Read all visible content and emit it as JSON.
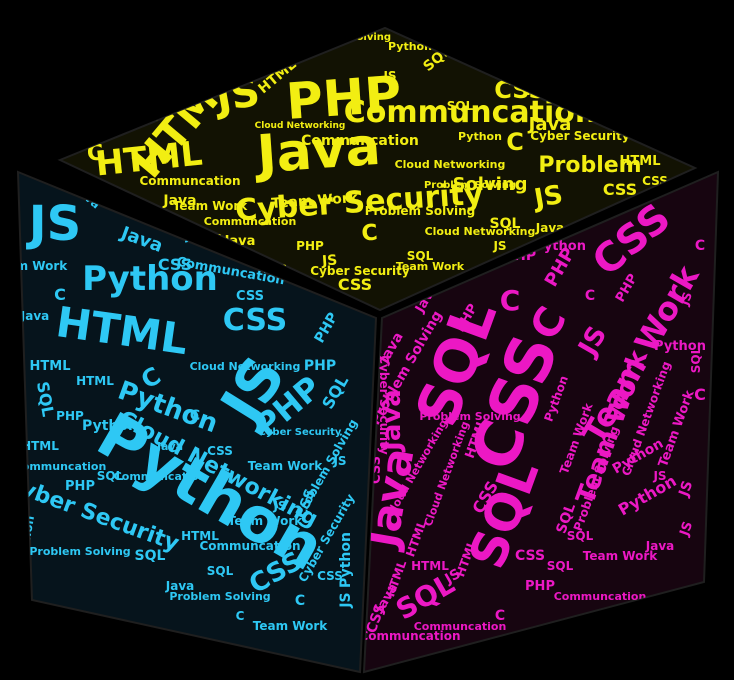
{
  "colors": {
    "background": "#000000",
    "top_face": "#121203",
    "left_face": "#06141c",
    "right_face": "#170510",
    "edge": "#1f1f1f",
    "top_words": "#f2ee12",
    "left_words": "#2ec8f4",
    "right_words": "#ec18c4"
  },
  "cube": {
    "top_face": {
      "words": [
        "PHP",
        "Java",
        "Cyber Security",
        "HTML",
        "JS",
        "HTML",
        "C",
        "Communcation",
        "Java",
        "CSS",
        "C",
        "Problem",
        "Solving",
        "Cyber Security",
        "SQL",
        "Communcation",
        "Team Work",
        "Problem Solving",
        "JS",
        "CSS",
        "Python",
        "PHP",
        "Cloud Networking",
        "HTML",
        "JS",
        "Cyber Security",
        "SQL",
        "C",
        "Problem Solving",
        "Team Work",
        "Java",
        "CSS",
        "JS",
        "HTML",
        "Python",
        "PHP",
        "CSS",
        "Cloud Networking",
        "Java",
        "SQL",
        "Communcation",
        "C",
        "Team Work",
        "Problem Solving",
        "Cyber Security",
        "Python",
        "HTML",
        "JS",
        "CSS",
        "PHP",
        "Java",
        "C",
        "SQL",
        "Communcation",
        "Team Work",
        "HTML",
        "CSS",
        "JS",
        "PHP",
        "Python",
        "Cloud Networking"
      ]
    },
    "left_face": {
      "words": [
        "Python",
        "HTML",
        "JS",
        "Python",
        "CSS",
        "PHP",
        "JS",
        "Cloud Networking",
        "Python",
        "Cyber Security",
        "CSS",
        "C",
        "Java",
        "CSS",
        "Communcation",
        "SQL",
        "C",
        "Team Work",
        "Problem Solving",
        "Java",
        "SQL",
        "PHP",
        "HTML",
        "Cyber Security",
        "Problem Solving",
        "CSS",
        "C",
        "Java",
        "Communcation",
        "JS",
        "PHP",
        "SQL",
        "Team Work",
        "Python",
        "HTML",
        "CSS",
        "Java",
        "C",
        "Cloud Networking",
        "PHP",
        "Communcation",
        "JS",
        "SQL",
        "HTML",
        "Python",
        "CSS",
        "Team Work",
        "Problem Solving",
        "C",
        "Java",
        "Cyber Security",
        "PHP",
        "JS",
        "SQL",
        "HTML",
        "CSS",
        "Python",
        "Java",
        "C",
        "Communcation",
        "Team Work"
      ]
    },
    "right_face": {
      "words": [
        "CSS",
        "SQL",
        "SQL",
        "Java",
        "Team Work",
        "C",
        "CSS",
        "JS",
        "SQL",
        "Java",
        "C",
        "PHP",
        "Python",
        "Cloud Networking",
        "Problem Solving",
        "JS",
        "HTML",
        "CSS",
        "Team Work",
        "Java",
        "SQL",
        "Python",
        "PHP",
        "Communcation",
        "C",
        "Cyber Security",
        "JS",
        "HTML",
        "CSS",
        "Java",
        "SQL",
        "Team Work",
        "Cloud Networking",
        "Problem Solving",
        "PHP",
        "Python",
        "C",
        "JS",
        "HTML",
        "CSS",
        "SQL",
        "Java",
        "Communcation",
        "Team Work",
        "PHP",
        "Python",
        "C",
        "Cloud Networking",
        "JS",
        "HTML",
        "CSS",
        "SQL",
        "Java",
        "Problem Solving",
        "Team Work",
        "PHP",
        "C",
        "Python",
        "Communcation",
        "JS",
        "HTML"
      ]
    }
  }
}
